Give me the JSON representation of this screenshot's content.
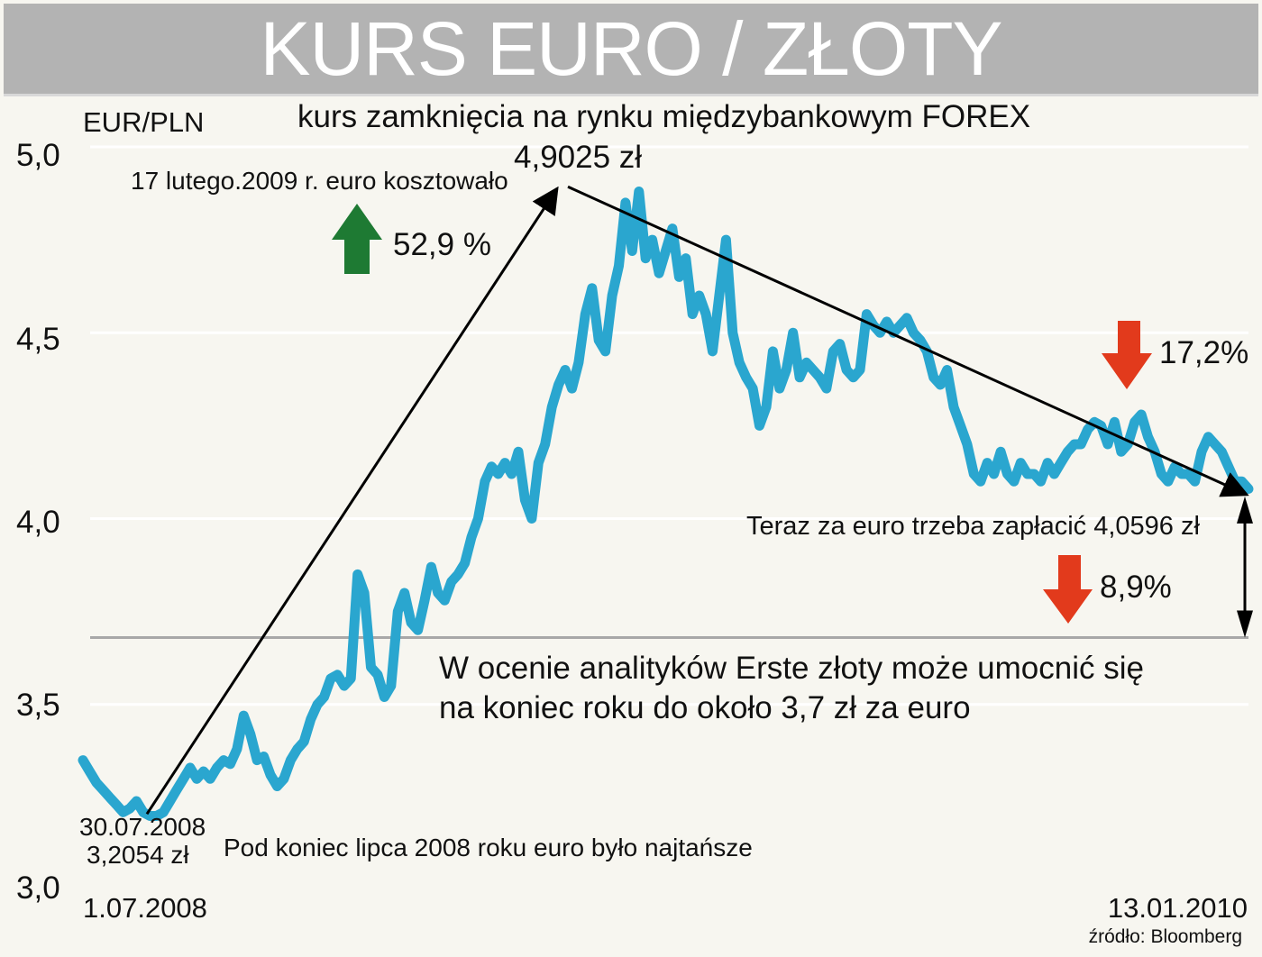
{
  "header": {
    "title": "KURS EURO / ZŁOTY"
  },
  "chart_data": {
    "type": "line",
    "title": "KURS EURO / ZŁOTY",
    "subtitle": "kurs zamknięcia na rynku międzybankowym FOREX",
    "ylabel": "EUR/PLN",
    "ylim": [
      3.0,
      5.0
    ],
    "yticks": [
      "5,0",
      "4,5",
      "4,0",
      "3,5",
      "3,0"
    ],
    "yticks_values": [
      5.0,
      4.5,
      4.0,
      3.5,
      3.0
    ],
    "x_start_label": "1.07.2008",
    "x_end_label": "13.01.2010",
    "source": "źródło: Bloomberg",
    "grid": true,
    "color": "#2aa6cf",
    "series": [
      {
        "values": [
          3.35,
          3.32,
          3.29,
          3.27,
          3.25,
          3.23,
          3.21,
          3.22,
          3.24,
          3.21,
          3.2,
          3.2,
          3.21,
          3.24,
          3.27,
          3.3,
          3.33,
          3.3,
          3.32,
          3.3,
          3.33,
          3.35,
          3.34,
          3.38,
          3.47,
          3.42,
          3.35,
          3.36,
          3.31,
          3.28,
          3.3,
          3.35,
          3.38,
          3.4,
          3.46,
          3.5,
          3.52,
          3.57,
          3.58,
          3.55,
          3.57,
          3.85,
          3.8,
          3.6,
          3.58,
          3.52,
          3.55,
          3.75,
          3.8,
          3.72,
          3.7,
          3.78,
          3.87,
          3.8,
          3.78,
          3.83,
          3.85,
          3.88,
          3.95,
          4.0,
          4.1,
          4.14,
          4.12,
          4.15,
          4.12,
          4.18,
          4.05,
          4.0,
          4.15,
          4.2,
          4.3,
          4.36,
          4.4,
          4.35,
          4.42,
          4.55,
          4.62,
          4.48,
          4.45,
          4.6,
          4.68,
          4.85,
          4.72,
          4.88,
          4.7,
          4.75,
          4.66,
          4.72,
          4.78,
          4.65,
          4.7,
          4.55,
          4.6,
          4.55,
          4.45,
          4.6,
          4.75,
          4.5,
          4.42,
          4.38,
          4.35,
          4.25,
          4.3,
          4.45,
          4.35,
          4.4,
          4.5,
          4.38,
          4.42,
          4.4,
          4.38,
          4.35,
          4.45,
          4.47,
          4.4,
          4.38,
          4.4,
          4.55,
          4.52,
          4.5,
          4.53,
          4.5,
          4.52,
          4.54,
          4.5,
          4.48,
          4.45,
          4.38,
          4.36,
          4.4,
          4.3,
          4.25,
          4.2,
          4.12,
          4.1,
          4.15,
          4.12,
          4.18,
          4.12,
          4.1,
          4.15,
          4.12,
          4.12,
          4.1,
          4.15,
          4.12,
          4.15,
          4.18,
          4.2,
          4.2,
          4.24,
          4.26,
          4.25,
          4.2,
          4.26,
          4.18,
          4.2,
          4.26,
          4.28,
          4.22,
          4.18,
          4.12,
          4.1,
          4.14,
          4.12,
          4.12,
          4.1,
          4.18,
          4.22,
          4.2,
          4.18,
          4.14,
          4.1,
          4.1,
          4.08
        ]
      }
    ],
    "annotations": {
      "peak_value": "4,9025 zł",
      "peak_note": "17 lutego.2009 r. euro kosztowało",
      "rise_pct": "52,9 %",
      "fall_pct": "17,2%",
      "now_note": "Teraz za euro trzeba zapłacić  4,0596 zł",
      "forecast_pct": "8,9%",
      "forecast_line1": "W ocenie analityków Erste złoty może umocnić się",
      "forecast_line2": "na koniec roku do około 3,7 zł za euro",
      "min_date": "30.07.2008",
      "min_value": "3,2054 zł",
      "min_note": "Pod koniec lipca 2008 roku euro było najtańsze"
    },
    "reference_line": 3.68,
    "key_points": {
      "start": 3.3,
      "min": 3.2054,
      "peak": 4.9025,
      "end": 4.0596
    },
    "colors": {
      "up": "#1e7a33",
      "down": "#e23a1c"
    }
  }
}
